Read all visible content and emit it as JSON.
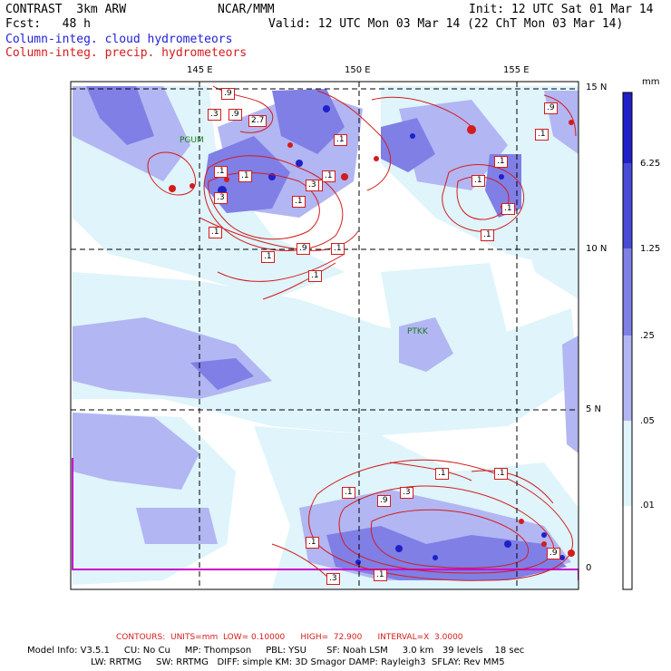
{
  "header": {
    "left_line1": "CONTRAST  3km ARW",
    "left_line2": "Fcst:   48 h",
    "center": "NCAR/MMM",
    "right_line1": "Init: 12 UTC Sat 01 Mar 14",
    "right_line2": "Valid: 12 UTC Mon 03 Mar 14 (22 ChT Mon 03 Mar 14)",
    "field_blue": "Column-integ. cloud hydrometeors",
    "field_red": "Column-integ. precip. hydrometeors"
  },
  "map": {
    "lon_labels": [
      "145 E",
      "150 E",
      "155 E"
    ],
    "lat_labels": [
      "15 N",
      "10 N",
      "5 N",
      "0"
    ],
    "stations": [
      "PGUM",
      "PTKK"
    ],
    "contour_labels": [
      ".9",
      ".3",
      ".9",
      "2.7",
      ".1",
      ".1",
      ".1",
      ".3",
      ".1",
      ".3",
      ".1",
      ".3",
      ".1",
      ".1",
      ".9",
      ".1",
      ".1",
      ".1",
      ".1",
      ".1",
      ".1",
      ".1",
      ".9",
      ".3",
      ".1",
      ".1",
      ".9",
      ".3",
      ".1",
      ".1",
      ".9",
      ".1"
    ],
    "colors": {
      "land_outline": "#cc00cc",
      "contour": "#d41c1c",
      "grid": "#000000"
    }
  },
  "colorbar": {
    "unit": "mm",
    "labels": [
      "6.25",
      "1.25",
      ".25",
      ".05",
      ".01"
    ],
    "colors": [
      "#2020c8",
      "#4a4ad8",
      "#7f7fe6",
      "#b2b6f2",
      "#dff4fb",
      "#ffffff"
    ]
  },
  "footer": {
    "contours": "CONTOURS:  UNITS=mm  LOW= 0.10000      HIGH=  72.900      INTERVAL=X  3.0000",
    "info_line1": "Model Info: V3.5.1     CU: No Cu     MP: Thompson     PBL: YSU       SF: Noah LSM     3.0 km   39 levels    18 sec",
    "info_line2": "LW: RRTMG     SW: RRTMG   DIFF: simple KM: 3D Smagor DAMP: Rayleigh3  SFLAY: Rev MM5"
  }
}
